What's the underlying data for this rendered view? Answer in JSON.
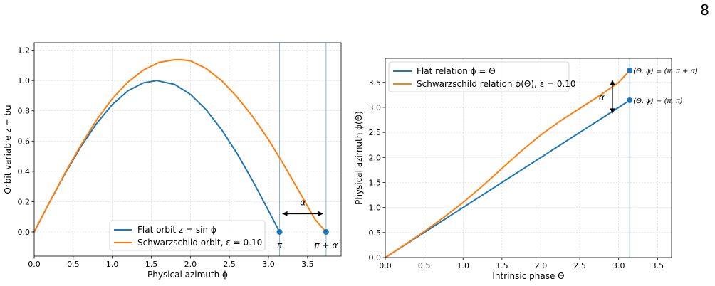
{
  "page_number": "8",
  "chart_data": [
    {
      "type": "line",
      "xlabel": "Physical azimuth ϕ",
      "ylabel": "Orbit variable z = bu",
      "xlim": [
        0.0,
        3.93
      ],
      "ylim": [
        -0.16,
        1.25
      ],
      "xticks": [
        "0.0",
        "0.5",
        "1.0",
        "1.5",
        "2.0",
        "2.5",
        "3.0",
        "3.5"
      ],
      "xtick_values": [
        0.0,
        0.5,
        1.0,
        1.5,
        2.0,
        2.5,
        3.0,
        3.5
      ],
      "yticks": [
        "0.0",
        "0.2",
        "0.4",
        "0.6",
        "0.8",
        "1.0",
        "1.2"
      ],
      "ytick_values": [
        0.0,
        0.2,
        0.4,
        0.6,
        0.8,
        1.0,
        1.2
      ],
      "grid": true,
      "legend_position": "lower-center",
      "series": [
        {
          "name": "Flat orbit z = sin ϕ",
          "color": "#1f77b4",
          "x": [
            0,
            0.2,
            0.4,
            0.6,
            0.8,
            1.0,
            1.2,
            1.4,
            1.5708,
            1.8,
            2.0,
            2.2,
            2.4,
            2.6,
            2.8,
            3.0,
            3.1416
          ],
          "y": [
            0,
            0.199,
            0.389,
            0.565,
            0.717,
            0.841,
            0.932,
            0.985,
            1.0,
            0.974,
            0.909,
            0.808,
            0.675,
            0.516,
            0.335,
            0.141,
            0.0
          ]
        },
        {
          "name": "Schwarzschild orbit, ε = 0.10",
          "color": "#ff7f0e",
          "x": [
            0,
            0.2,
            0.4,
            0.6,
            0.8,
            1.0,
            1.2,
            1.4,
            1.6,
            1.8,
            1.87,
            2.0,
            2.2,
            2.4,
            2.6,
            2.8,
            3.0,
            3.2,
            3.4,
            3.6,
            3.737
          ],
          "y": [
            0,
            0.2,
            0.394,
            0.575,
            0.74,
            0.88,
            0.99,
            1.07,
            1.12,
            1.137,
            1.138,
            1.13,
            1.08,
            1.0,
            0.89,
            0.76,
            0.61,
            0.44,
            0.26,
            0.08,
            0.0
          ]
        }
      ],
      "points": [
        {
          "x": 3.1416,
          "y": 0.0,
          "label": "π"
        },
        {
          "x": 3.737,
          "y": 0.0,
          "label": "π + α"
        }
      ],
      "vlines": [
        3.1416,
        3.737
      ],
      "annotation": {
        "label": "α",
        "x_start": 3.1416,
        "x_end": 3.737,
        "y": 0.12
      }
    },
    {
      "type": "line",
      "xlabel": "Intrinsic phase Θ",
      "ylabel": "Physical azimuth ϕ(Θ)",
      "xlim": [
        0.0,
        3.68
      ],
      "ylim": [
        0.0,
        3.98
      ],
      "xticks": [
        "0.0",
        "0.5",
        "1.0",
        "1.5",
        "2.0",
        "2.5",
        "3.0",
        "3.5"
      ],
      "xtick_values": [
        0.0,
        0.5,
        1.0,
        1.5,
        2.0,
        2.5,
        3.0,
        3.5
      ],
      "yticks": [
        "0.0",
        "0.5",
        "1.0",
        "1.5",
        "2.0",
        "2.5",
        "3.0",
        "3.5"
      ],
      "ytick_values": [
        0.0,
        0.5,
        1.0,
        1.5,
        2.0,
        2.5,
        3.0,
        3.5
      ],
      "grid": true,
      "legend_position": "top-left",
      "series": [
        {
          "name": "Flat relation ϕ = Θ",
          "color": "#1f77b4",
          "x": [
            0,
            3.1416
          ],
          "y": [
            0,
            3.1416
          ]
        },
        {
          "name": "Schwarzschild relation ϕ(Θ), ε = 0.10",
          "color": "#ff7f0e",
          "x": [
            0,
            0.25,
            0.5,
            0.75,
            1.0,
            1.25,
            1.5,
            1.75,
            2.0,
            2.25,
            2.5,
            2.75,
            3.0,
            3.1416
          ],
          "y": [
            0,
            0.255,
            0.52,
            0.8,
            1.1,
            1.43,
            1.78,
            2.13,
            2.45,
            2.73,
            2.98,
            3.23,
            3.5,
            3.737
          ]
        }
      ],
      "points": [
        {
          "x": 3.1416,
          "y": 3.1416,
          "label": "(Θ, ϕ) = (π, π)"
        },
        {
          "x": 3.1416,
          "y": 3.737,
          "label": "(Θ, ϕ) = (π, π + α)"
        }
      ],
      "vlines": [
        3.1416
      ],
      "annotation": {
        "label": "α",
        "x": 2.92,
        "y_start": 2.88,
        "y_end": 3.55
      }
    }
  ]
}
